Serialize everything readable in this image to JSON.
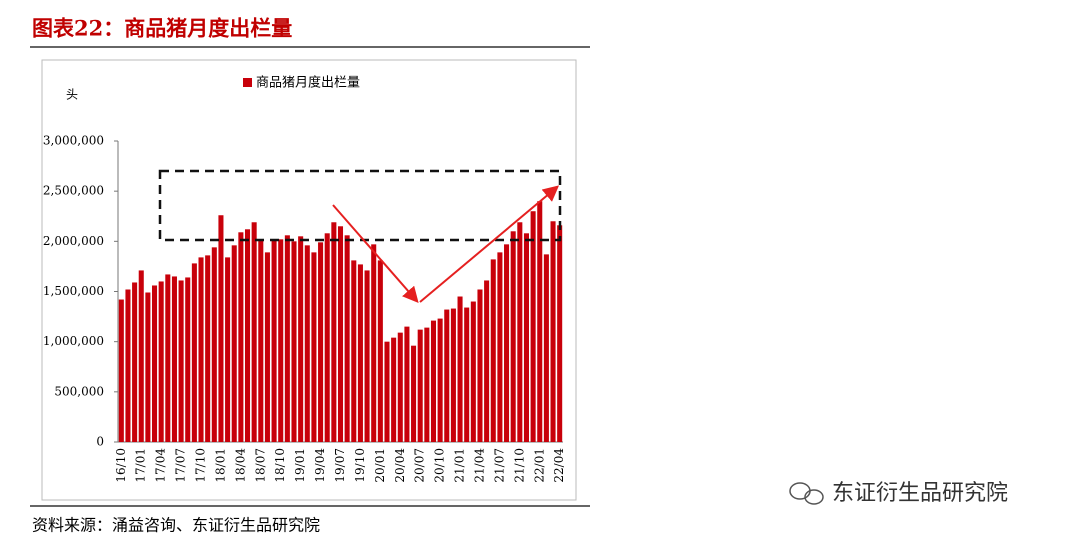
{
  "header": {
    "title": "图表22：商品猪月度出栏量"
  },
  "chart_data": {
    "type": "bar",
    "y_label": "头",
    "categories": [
      "16/10",
      null,
      null,
      "17/01",
      null,
      null,
      "17/04",
      null,
      null,
      "17/07",
      null,
      null,
      "17/10",
      null,
      null,
      "18/01",
      null,
      null,
      "18/04",
      null,
      null,
      "18/07",
      null,
      null,
      "18/10",
      null,
      null,
      "19/01",
      null,
      null,
      "19/04",
      null,
      null,
      "19/07",
      null,
      null,
      "19/10",
      null,
      null,
      "20/01",
      null,
      null,
      "20/04",
      null,
      null,
      "20/07",
      null,
      null,
      "20/10",
      null,
      null,
      "21/01",
      null,
      null,
      "21/04",
      null,
      null,
      "21/07",
      null,
      null,
      "21/10",
      null,
      null,
      "22/01",
      null,
      null,
      "22/04"
    ],
    "series": [
      {
        "name": "商品猪月度出栏量",
        "color": "#c8000a",
        "values": [
          1420000,
          1520000,
          1590000,
          1710000,
          1490000,
          1560000,
          1600000,
          1670000,
          1650000,
          1610000,
          1640000,
          1780000,
          1840000,
          1860000,
          1940000,
          2260000,
          1840000,
          1960000,
          2090000,
          2120000,
          2190000,
          2010000,
          1890000,
          2010000,
          2020000,
          2060000,
          2000000,
          2050000,
          1960000,
          1890000,
          1990000,
          2080000,
          2190000,
          2150000,
          2060000,
          1810000,
          1770000,
          1710000,
          1970000,
          1810000,
          1000000,
          1040000,
          1090000,
          1150000,
          960000,
          1120000,
          1140000,
          1210000,
          1230000,
          1320000,
          1330000,
          1450000,
          1340000,
          1400000,
          1520000,
          1610000,
          1820000,
          1890000,
          1970000,
          2100000,
          2190000,
          2080000,
          2300000,
          2400000,
          1870000,
          2200000,
          2160000
        ]
      }
    ],
    "ylim": [
      0,
      3000000
    ],
    "yticks": [
      0,
      {
        "value": 500000,
        "label": "500,000"
      },
      {
        "value": 1000000,
        "label": "1,000,000"
      },
      {
        "value": 1500000,
        "label": "1,500,000"
      },
      {
        "value": 2000000,
        "label": "2,000,000"
      },
      {
        "value": 2500000,
        "label": "2,500,000"
      },
      {
        "value": 3000000,
        "label": "3,000,000"
      }
    ],
    "grid": false
  },
  "source": "资料来源：涌益咨询、东证衍生品研究院",
  "watermark": "东证衍生品研究院"
}
